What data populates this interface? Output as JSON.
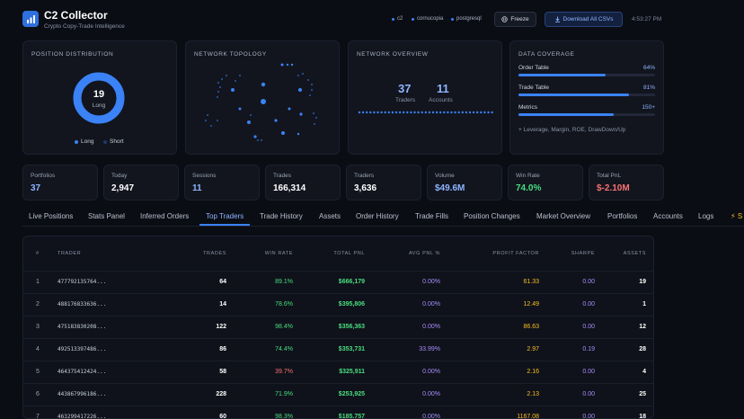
{
  "header": {
    "title": "C2 Collector",
    "subtitle": "Crypto Copy-Trade Intelligence",
    "statuses": [
      "c2",
      "cornucopia",
      "postgresql"
    ],
    "freeze_label": "Freeze",
    "download_label": "Download All CSVs",
    "clock": "4:53:27 PM"
  },
  "panels": {
    "position_distribution": {
      "title": "POSITION DISTRIBUTION",
      "center_value": "19",
      "center_label": "Long",
      "long_fraction": 1.0,
      "legend": [
        {
          "label": "Long",
          "color": "#3b82f6"
        },
        {
          "label": "Short",
          "color": "#1e3a6b"
        }
      ]
    },
    "network_topology": {
      "title": "NETWORK TOPOLOGY"
    },
    "network_overview": {
      "title": "NETWORK OVERVIEW",
      "traders_value": "37",
      "traders_label": "Traders",
      "accounts_value": "11",
      "accounts_label": "Accounts"
    },
    "data_coverage": {
      "title": "DATA COVERAGE",
      "items": [
        {
          "label": "Order Table",
          "value": "64%",
          "fill": 0.64
        },
        {
          "label": "Trade Table",
          "value": "81%",
          "fill": 0.81
        },
        {
          "label": "Metrics",
          "value": "150+",
          "fill": 0.7
        }
      ],
      "footnote": "+ Leverage, Margin, ROE, DrawDown/Up"
    }
  },
  "kpis": [
    {
      "label": "Portfolios",
      "value": "37",
      "color": "#8db4ff"
    },
    {
      "label": "Today",
      "value": "2,947",
      "color": "#ffffff"
    },
    {
      "label": "Sessions",
      "value": "11",
      "color": "#8db4ff"
    },
    {
      "label": "Trades",
      "value": "166,314",
      "color": "#ffffff"
    },
    {
      "label": "Traders",
      "value": "3,636",
      "color": "#ffffff"
    },
    {
      "label": "Volume",
      "value": "$49.6M",
      "color": "#8db4ff"
    },
    {
      "label": "Win Rate",
      "value": "74.0%",
      "color": "#4ade80"
    },
    {
      "label": "Total PnL",
      "value": "$-2.10M",
      "color": "#f87171"
    }
  ],
  "tabs": [
    "Live Positions",
    "Stats Panel",
    "Inferred Orders",
    "Top Traders",
    "Trade History",
    "Assets",
    "Order History",
    "Trade Fills",
    "Position Changes",
    "Market Overview",
    "Portfolios",
    "Accounts",
    "Logs",
    "⚡ S"
  ],
  "active_tab": "Top Traders",
  "table": {
    "columns": [
      "#",
      "TRADER",
      "TRADES",
      "WIN RATE",
      "TOTAL PNL",
      "AVG PNL %",
      "PROFIT FACTOR",
      "SHARPE",
      "ASSETS"
    ],
    "rows": [
      {
        "rank": "1",
        "trader": "477792135764...",
        "trades": "64",
        "win_rate": "89.1%",
        "win_color": "green",
        "pnl": "$666,179",
        "avg": "0.00%",
        "pf": "61.33",
        "sharpe": "0.00",
        "assets": "19"
      },
      {
        "rank": "2",
        "trader": "488176833636...",
        "trades": "14",
        "win_rate": "78.6%",
        "win_color": "green",
        "pnl": "$395,806",
        "avg": "0.00%",
        "pf": "12.49",
        "sharpe": "0.00",
        "assets": "1"
      },
      {
        "rank": "3",
        "trader": "475183830208...",
        "trades": "122",
        "win_rate": "98.4%",
        "win_color": "green",
        "pnl": "$356,363",
        "avg": "0.00%",
        "pf": "86.63",
        "sharpe": "0.00",
        "assets": "12"
      },
      {
        "rank": "4",
        "trader": "492513397486...",
        "trades": "86",
        "win_rate": "74.4%",
        "win_color": "green",
        "pnl": "$353,731",
        "avg": "33.99%",
        "pf": "2.97",
        "sharpe": "0.19",
        "assets": "28"
      },
      {
        "rank": "5",
        "trader": "464375412424...",
        "trades": "58",
        "win_rate": "39.7%",
        "win_color": "red",
        "pnl": "$325,911",
        "avg": "0.00%",
        "pf": "2.16",
        "sharpe": "0.00",
        "assets": "4"
      },
      {
        "rank": "6",
        "trader": "443867996186...",
        "trades": "228",
        "win_rate": "71.9%",
        "win_color": "green",
        "pnl": "$253,925",
        "avg": "0.00%",
        "pf": "2.13",
        "sharpe": "0.00",
        "assets": "25"
      },
      {
        "rank": "7",
        "trader": "463299417226...",
        "trades": "60",
        "win_rate": "98.3%",
        "win_color": "green",
        "pnl": "$185,757",
        "avg": "0.00%",
        "pf": "1167.08",
        "sharpe": "0.00",
        "assets": "18"
      }
    ]
  }
}
